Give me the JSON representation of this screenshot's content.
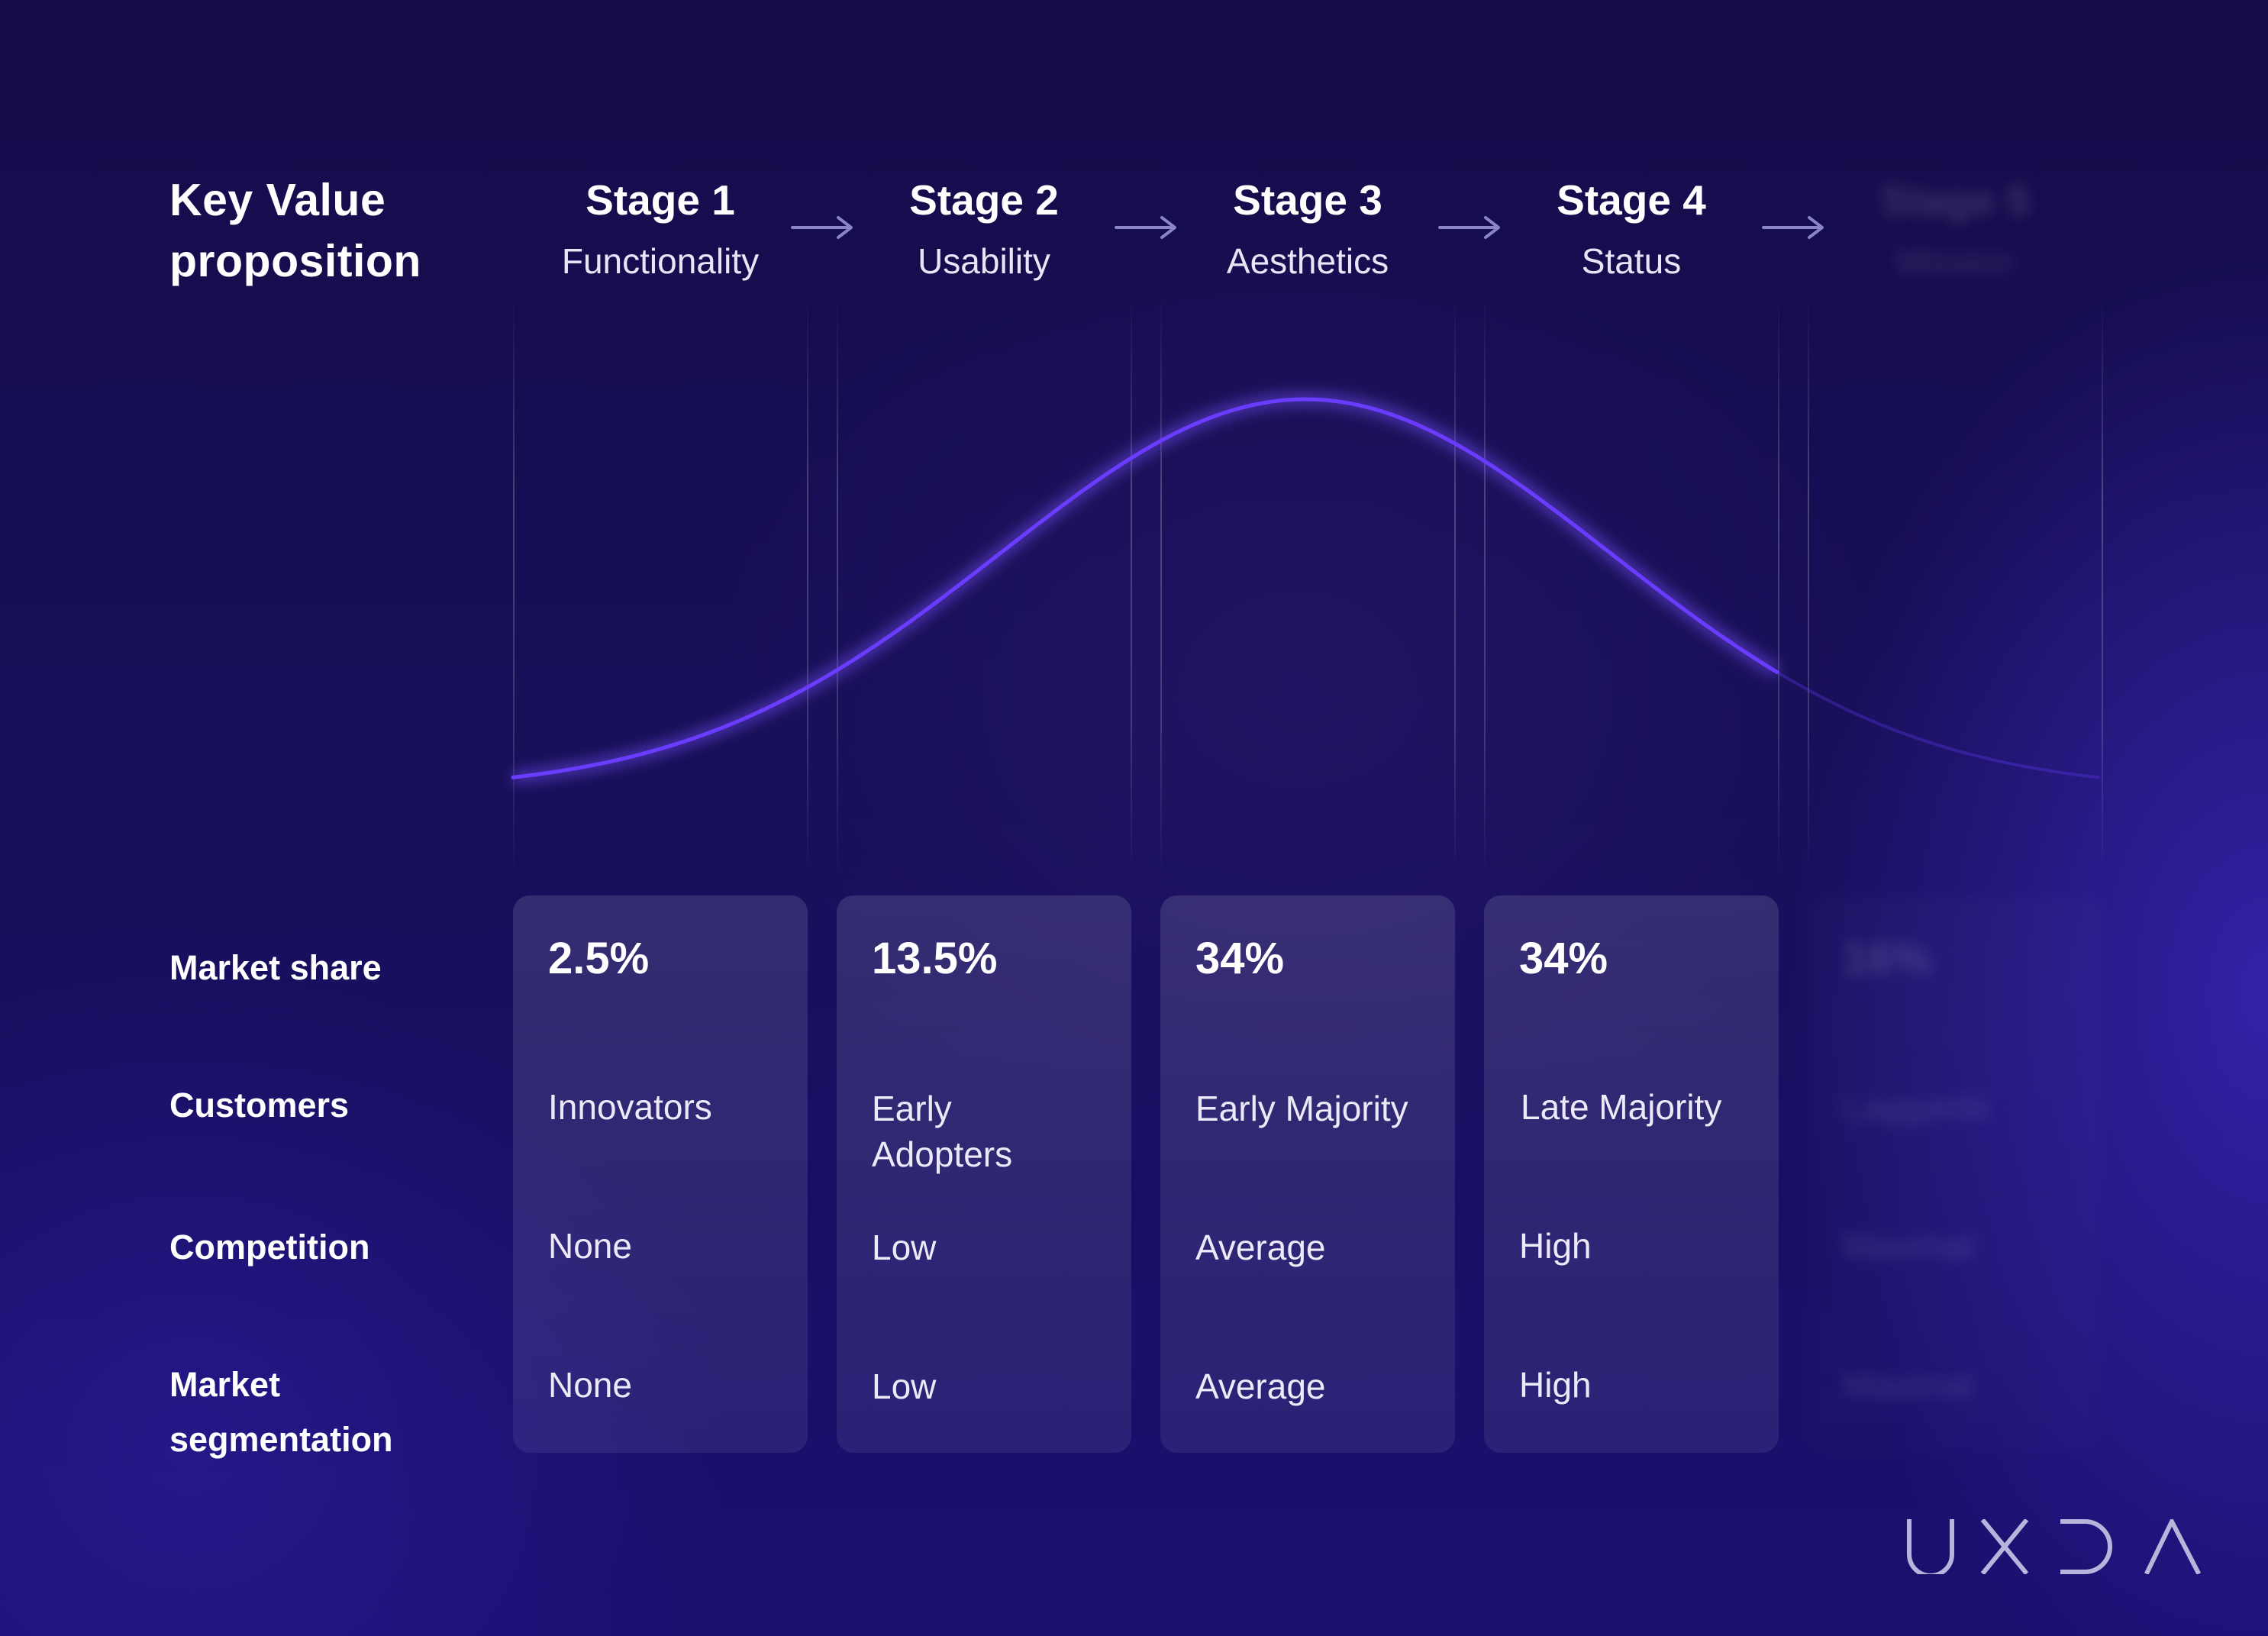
{
  "title": [
    "Key Value",
    "proposition"
  ],
  "stages": [
    {
      "name": "Stage 1",
      "theme": "Functionality",
      "market_share": "2.5%",
      "customers": "Innovators",
      "competition": "None",
      "segmentation": "None"
    },
    {
      "name": "Stage 2",
      "theme": "Usability",
      "market_share": "13.5%",
      "customers": "Early\nAdopters",
      "competition": "Low",
      "segmentation": "Low"
    },
    {
      "name": "Stage 3",
      "theme": "Aesthetics",
      "market_share": "34%",
      "customers": "Early Majority",
      "competition": "Average",
      "segmentation": "Average"
    },
    {
      "name": "Stage 4",
      "theme": "Status",
      "market_share": "34%",
      "customers": "Late Majority",
      "competition": "High",
      "segmentation": "High"
    },
    {
      "name": "Stage 5",
      "theme": "Mission",
      "market_share": "16%",
      "customers": "Laggards",
      "competition": "Maximal",
      "segmentation": "Maximal",
      "faded": true
    }
  ],
  "row_labels": {
    "market_share": "Market share",
    "customers": "Customers",
    "competition": "Competition",
    "segmentation": [
      "Market",
      "segmentation"
    ]
  },
  "colors": {
    "curve": "#6a3cff",
    "curve_glow": "#7b52ff",
    "background_top": "#150c4a",
    "background_bottom": "#1a1070"
  },
  "logo": "UXDA"
}
